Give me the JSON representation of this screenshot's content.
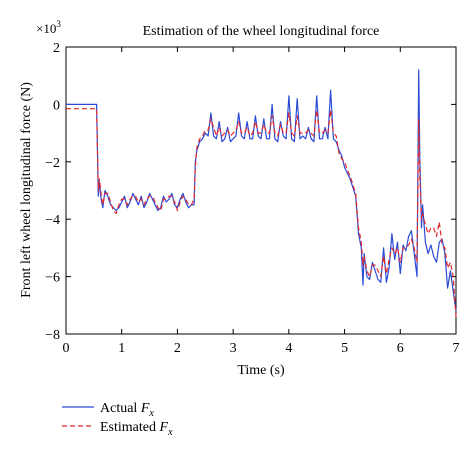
{
  "chart_data": {
    "type": "line",
    "title": "Estimation of the wheel longitudinal force",
    "xlabel": "Time (s)",
    "ylabel": "Front left wheel longitudinal force (N)",
    "y_multiplier_label": "×10",
    "y_multiplier_exp": "3",
    "xlim": [
      0,
      7
    ],
    "ylim": [
      -8,
      2
    ],
    "xticks": [
      0,
      1,
      2,
      3,
      4,
      5,
      6,
      7
    ],
    "yticks": [
      -8,
      -6,
      -4,
      -2,
      0,
      2
    ],
    "grid": false,
    "legend_position": "below-left",
    "series": [
      {
        "name": "Actual",
        "subscript": "x",
        "symbol": "F",
        "color": "#2b4bd6",
        "dash": "solid",
        "x": [
          0,
          0.3,
          0.55,
          0.58,
          0.6,
          0.63,
          0.66,
          0.7,
          0.75,
          0.8,
          0.85,
          0.9,
          0.95,
          1.0,
          1.05,
          1.1,
          1.15,
          1.2,
          1.25,
          1.3,
          1.35,
          1.4,
          1.45,
          1.5,
          1.55,
          1.6,
          1.65,
          1.7,
          1.75,
          1.8,
          1.85,
          1.9,
          1.95,
          2.0,
          2.05,
          2.1,
          2.15,
          2.2,
          2.25,
          2.3,
          2.32,
          2.35,
          2.4,
          2.45,
          2.5,
          2.55,
          2.6,
          2.65,
          2.7,
          2.75,
          2.8,
          2.85,
          2.9,
          2.95,
          3.0,
          3.05,
          3.1,
          3.15,
          3.2,
          3.25,
          3.3,
          3.35,
          3.4,
          3.45,
          3.5,
          3.55,
          3.6,
          3.65,
          3.7,
          3.75,
          3.8,
          3.85,
          3.9,
          3.95,
          4.0,
          4.05,
          4.1,
          4.15,
          4.2,
          4.25,
          4.3,
          4.35,
          4.4,
          4.45,
          4.5,
          4.55,
          4.6,
          4.65,
          4.7,
          4.75,
          4.8,
          4.85,
          4.9,
          4.95,
          5.0,
          5.05,
          5.1,
          5.15,
          5.2,
          5.25,
          5.3,
          5.33,
          5.35,
          5.4,
          5.45,
          5.5,
          5.55,
          5.6,
          5.65,
          5.7,
          5.75,
          5.8,
          5.85,
          5.9,
          5.95,
          6.0,
          6.05,
          6.1,
          6.15,
          6.2,
          6.25,
          6.3,
          6.33,
          6.35,
          6.38,
          6.4,
          6.45,
          6.5,
          6.55,
          6.6,
          6.65,
          6.7,
          6.75,
          6.8,
          6.85,
          6.9,
          6.95,
          7.0
        ],
        "y": [
          0,
          0,
          0,
          -3.2,
          -2.7,
          -3.3,
          -3.6,
          -3.0,
          -3.2,
          -3.5,
          -3.6,
          -3.7,
          -3.6,
          -3.4,
          -3.2,
          -3.6,
          -3.4,
          -3.1,
          -3.3,
          -3.5,
          -3.2,
          -3.6,
          -3.4,
          -3.1,
          -3.3,
          -3.5,
          -3.7,
          -3.6,
          -3.2,
          -3.4,
          -3.3,
          -3.1,
          -3.5,
          -3.6,
          -3.3,
          -3.1,
          -3.4,
          -3.6,
          -3.5,
          -3.5,
          -2.0,
          -1.6,
          -1.3,
          -1.2,
          -1.0,
          -1.1,
          -0.3,
          -1.1,
          -1.2,
          -0.6,
          -1.3,
          -1.2,
          -0.8,
          -1.3,
          -1.2,
          -1.1,
          -0.3,
          -1.1,
          -1.2,
          -0.6,
          -1.2,
          -1.2,
          -0.4,
          -1.1,
          -1.2,
          -0.5,
          -1.2,
          -1.2,
          0.0,
          -1.2,
          -1.3,
          -0.6,
          -1.1,
          -1.2,
          0.3,
          -1.2,
          -1.3,
          0.2,
          -1.2,
          -1.1,
          -1.2,
          -0.8,
          -1.2,
          -1.3,
          0.3,
          -1.2,
          -1.2,
          -0.8,
          -1.2,
          0.5,
          -1.2,
          -1.3,
          -1.6,
          -1.8,
          -2.2,
          -2.4,
          -2.6,
          -2.9,
          -3.2,
          -4.5,
          -5.0,
          -6.3,
          -5.2,
          -6.0,
          -6.1,
          -5.5,
          -5.8,
          -6.1,
          -6.2,
          -5.0,
          -6.2,
          -5.7,
          -4.5,
          -5.4,
          -4.8,
          -5.9,
          -4.9,
          -5.1,
          -4.6,
          -4.4,
          -5.2,
          -6.0,
          1.2,
          -1.8,
          -4.3,
          -3.5,
          -4.8,
          -5.2,
          -4.9,
          -5.3,
          -5.5,
          -4.8,
          -4.7,
          -5.2,
          -6.4,
          -5.8,
          -6.5,
          -7.2
        ]
      },
      {
        "name": "Estimated",
        "subscript": "x",
        "symbol": "F",
        "color": "#e3282b",
        "dash": "dashed",
        "x": [
          0,
          0.3,
          0.55,
          0.58,
          0.6,
          0.63,
          0.66,
          0.7,
          0.75,
          0.8,
          0.85,
          0.9,
          0.95,
          1.0,
          1.05,
          1.1,
          1.15,
          1.2,
          1.25,
          1.3,
          1.35,
          1.4,
          1.45,
          1.5,
          1.55,
          1.6,
          1.65,
          1.7,
          1.75,
          1.8,
          1.85,
          1.9,
          1.95,
          2.0,
          2.05,
          2.1,
          2.15,
          2.2,
          2.25,
          2.3,
          2.32,
          2.35,
          2.4,
          2.45,
          2.5,
          2.55,
          2.6,
          2.65,
          2.7,
          2.75,
          2.8,
          2.85,
          2.9,
          2.95,
          3.0,
          3.05,
          3.1,
          3.15,
          3.2,
          3.25,
          3.3,
          3.35,
          3.4,
          3.45,
          3.5,
          3.55,
          3.6,
          3.65,
          3.7,
          3.75,
          3.8,
          3.85,
          3.9,
          3.95,
          4.0,
          4.05,
          4.1,
          4.15,
          4.2,
          4.25,
          4.3,
          4.35,
          4.4,
          4.45,
          4.5,
          4.55,
          4.6,
          4.65,
          4.7,
          4.75,
          4.8,
          4.85,
          4.9,
          4.95,
          5.0,
          5.05,
          5.1,
          5.15,
          5.2,
          5.25,
          5.3,
          5.33,
          5.35,
          5.4,
          5.45,
          5.5,
          5.55,
          5.6,
          5.65,
          5.7,
          5.75,
          5.8,
          5.85,
          5.9,
          5.95,
          6.0,
          6.05,
          6.1,
          6.15,
          6.2,
          6.25,
          6.3,
          6.33,
          6.35,
          6.38,
          6.4,
          6.45,
          6.5,
          6.55,
          6.6,
          6.65,
          6.7,
          6.75,
          6.8,
          6.85,
          6.9,
          6.95,
          7.0
        ],
        "y": [
          -0.15,
          -0.15,
          -0.15,
          -3.0,
          -2.6,
          -3.1,
          -3.5,
          -3.1,
          -3.1,
          -3.4,
          -3.7,
          -3.8,
          -3.5,
          -3.3,
          -3.3,
          -3.5,
          -3.3,
          -3.2,
          -3.2,
          -3.4,
          -3.3,
          -3.5,
          -3.3,
          -3.2,
          -3.2,
          -3.4,
          -3.6,
          -3.7,
          -3.3,
          -3.3,
          -3.2,
          -3.2,
          -3.4,
          -3.7,
          -3.4,
          -3.2,
          -3.3,
          -3.5,
          -3.5,
          -3.3,
          -2.2,
          -1.5,
          -1.2,
          -1.1,
          -0.9,
          -0.9,
          -0.5,
          -0.8,
          -1.1,
          -0.8,
          -1.1,
          -1.0,
          -0.9,
          -1.1,
          -1.0,
          -0.9,
          -0.6,
          -1.0,
          -1.0,
          -0.8,
          -1.1,
          -1.0,
          -0.6,
          -1.0,
          -1.0,
          -0.7,
          -1.0,
          -1.0,
          -0.4,
          -1.0,
          -1.1,
          -0.7,
          -1.0,
          -1.0,
          -0.3,
          -1.0,
          -1.1,
          -0.4,
          -1.0,
          -1.0,
          -1.0,
          -0.9,
          -1.0,
          -1.1,
          -0.2,
          -1.0,
          -1.0,
          -0.9,
          -1.0,
          -0.2,
          -1.0,
          -1.1,
          -1.7,
          -1.9,
          -2.0,
          -2.3,
          -2.5,
          -2.8,
          -3.1,
          -4.3,
          -4.8,
          -5.6,
          -5.3,
          -5.8,
          -6.0,
          -5.6,
          -5.6,
          -5.8,
          -6.0,
          -5.3,
          -5.9,
          -5.4,
          -5.0,
          -5.2,
          -5.0,
          -5.5,
          -5.0,
          -5.0,
          -4.9,
          -4.7,
          -5.0,
          -5.5,
          -0.5,
          -2.5,
          -4.0,
          -3.8,
          -4.2,
          -4.5,
          -4.3,
          -4.3,
          -4.6,
          -4.1,
          -4.9,
          -5.0,
          -5.7,
          -5.5,
          -6.0,
          -7.4
        ]
      }
    ]
  }
}
